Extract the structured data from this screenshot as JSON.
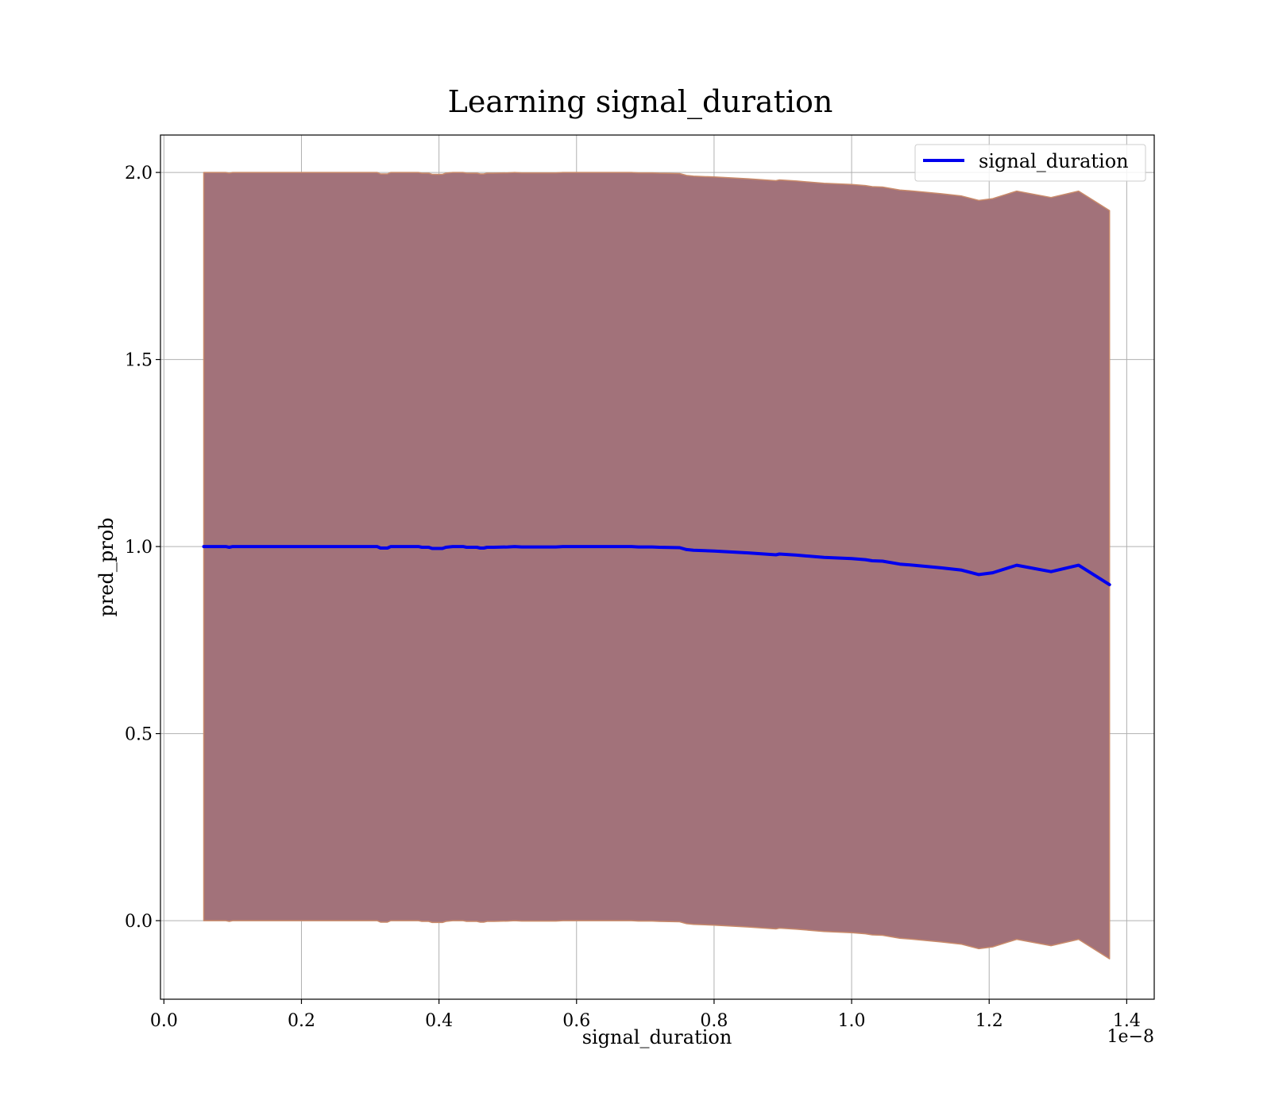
{
  "chart_data": {
    "type": "line",
    "title": "Learning signal_duration",
    "xlabel": "signal_duration",
    "ylabel": "pred_prob",
    "x_offset_label": "1e−8",
    "xlim": [
      -0.005,
      1.44
    ],
    "ylim": [
      -0.21,
      2.1
    ],
    "x_ticks": [
      0.0,
      0.2,
      0.4,
      0.6,
      0.8,
      1.0,
      1.2,
      1.4
    ],
    "x_tick_labels": [
      "0.0",
      "0.2",
      "0.4",
      "0.6",
      "0.8",
      "1.0",
      "1.2",
      "1.4"
    ],
    "y_ticks": [
      0.0,
      0.5,
      1.0,
      1.5,
      2.0
    ],
    "y_tick_labels": [
      "0.0",
      "0.5",
      "1.0",
      "1.5",
      "2.0"
    ],
    "grid": true,
    "legend_position": "top-right",
    "colors": {
      "line": "#0000ee",
      "band_fill": "#a2727a",
      "band_edge": "#c98a6a",
      "grid": "#b0b0b0"
    },
    "series": [
      {
        "name": "signal_duration",
        "x": [
          0.058,
          0.09,
          0.095,
          0.1,
          0.2,
          0.31,
          0.315,
          0.325,
          0.33,
          0.37,
          0.375,
          0.385,
          0.39,
          0.405,
          0.41,
          0.42,
          0.435,
          0.44,
          0.455,
          0.46,
          0.465,
          0.47,
          0.48,
          0.5,
          0.51,
          0.52,
          0.57,
          0.58,
          0.68,
          0.69,
          0.71,
          0.72,
          0.75,
          0.76,
          0.77,
          0.8,
          0.85,
          0.89,
          0.895,
          0.92,
          0.96,
          1.0,
          1.02,
          1.03,
          1.045,
          1.07,
          1.09,
          1.13,
          1.16,
          1.185,
          1.205,
          1.24,
          1.29,
          1.33,
          1.375
        ],
        "y": [
          1.0,
          1.0,
          0.998,
          1.0,
          1.0,
          1.0,
          0.996,
          0.996,
          1.0,
          1.0,
          0.998,
          0.998,
          0.995,
          0.995,
          0.998,
          1.0,
          1.0,
          0.998,
          0.998,
          0.996,
          0.996,
          0.998,
          0.998,
          0.999,
          1.0,
          0.999,
          0.999,
          1.0,
          1.0,
          0.999,
          0.999,
          0.998,
          0.997,
          0.992,
          0.99,
          0.988,
          0.983,
          0.978,
          0.98,
          0.977,
          0.971,
          0.968,
          0.965,
          0.962,
          0.961,
          0.953,
          0.95,
          0.943,
          0.937,
          0.925,
          0.93,
          0.95,
          0.933,
          0.95,
          0.898
        ]
      }
    ],
    "band": {
      "upper": [
        2.0,
        2.0,
        1.998,
        2.0,
        2.0,
        2.0,
        1.996,
        1.996,
        2.0,
        2.0,
        1.998,
        1.998,
        1.995,
        1.995,
        1.998,
        2.0,
        2.0,
        1.998,
        1.998,
        1.996,
        1.996,
        1.998,
        1.998,
        1.999,
        2.0,
        1.999,
        1.999,
        2.0,
        2.0,
        1.999,
        1.999,
        1.998,
        1.997,
        1.992,
        1.99,
        1.988,
        1.983,
        1.978,
        1.98,
        1.977,
        1.971,
        1.968,
        1.965,
        1.962,
        1.961,
        1.953,
        1.95,
        1.943,
        1.937,
        1.925,
        1.93,
        1.95,
        1.933,
        1.95,
        1.898
      ],
      "lower": [
        0.0,
        0.0,
        -0.002,
        0.0,
        0.0,
        0.0,
        -0.004,
        -0.004,
        0.0,
        0.0,
        -0.002,
        -0.002,
        -0.005,
        -0.005,
        -0.002,
        0.0,
        0.0,
        -0.002,
        -0.002,
        -0.004,
        -0.004,
        -0.002,
        -0.002,
        -0.001,
        0.0,
        -0.001,
        -0.001,
        0.0,
        0.0,
        -0.001,
        -0.001,
        -0.002,
        -0.003,
        -0.008,
        -0.01,
        -0.012,
        -0.017,
        -0.022,
        -0.02,
        -0.023,
        -0.029,
        -0.032,
        -0.035,
        -0.038,
        -0.039,
        -0.047,
        -0.05,
        -0.057,
        -0.063,
        -0.075,
        -0.07,
        -0.05,
        -0.067,
        -0.05,
        -0.102
      ]
    }
  }
}
